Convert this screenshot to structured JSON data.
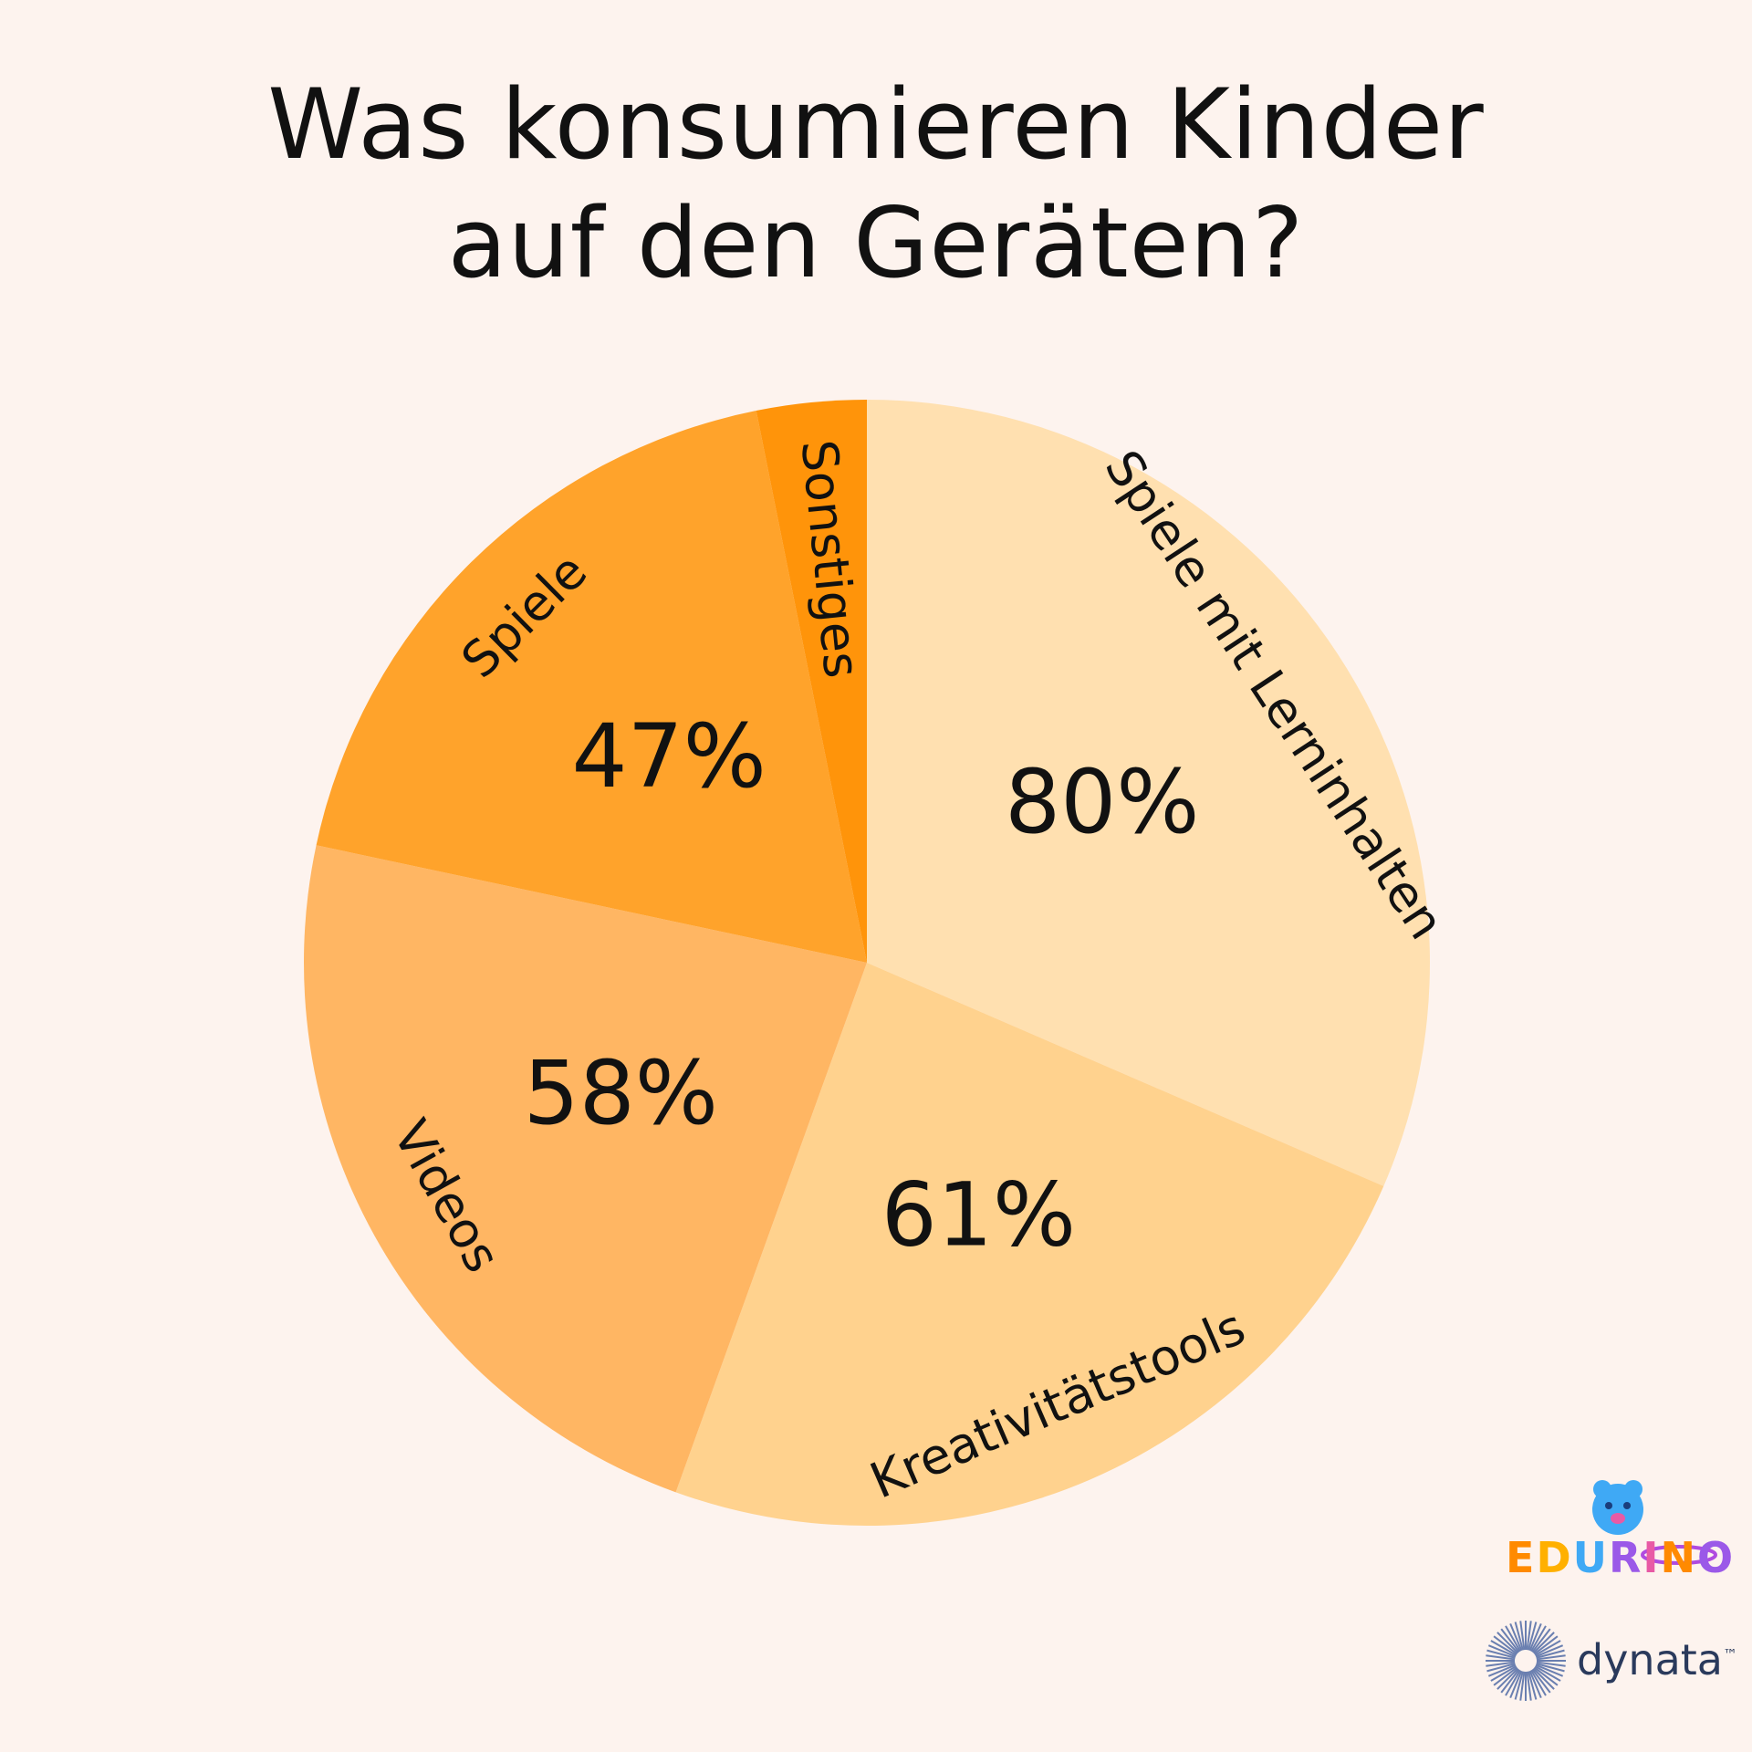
{
  "chart_data": {
    "type": "pie",
    "title": [
      "Was konsumieren Kinder",
      "auf den Geräten?"
    ],
    "categories": [
      "Spiele mit Lerninhalten",
      "Kreativitätstools",
      "Videos",
      "Spiele",
      "Sonstiges"
    ],
    "values": [
      80,
      61,
      58,
      47,
      8
    ],
    "value_labels": [
      "80%",
      "61%",
      "58%",
      "47%",
      ""
    ],
    "colors": [
      "#ffe0b0",
      "#ffd28e",
      "#ffb663",
      "#ffa32b",
      "#ff940a"
    ]
  },
  "branding": {
    "edurino": "EDURINO",
    "dynata": "dynata",
    "dynata_tm": "™"
  }
}
